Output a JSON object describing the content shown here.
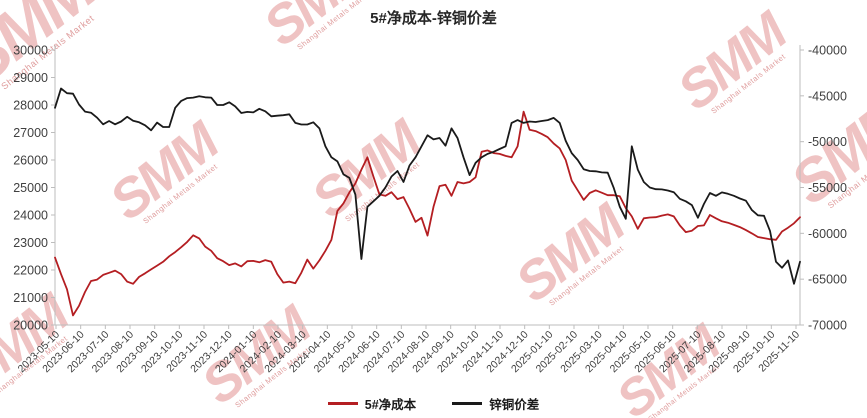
{
  "chart": {
    "title": "5#净成本-锌铜价差",
    "watermark": {
      "big": "SMM",
      "small": "Shanghai Metals Market"
    }
  },
  "chart_data": {
    "type": "line",
    "title": "5#净成本-锌铜价差",
    "grid": false,
    "legend_position": "bottom",
    "colors": {
      "net_cost": "#b41e22",
      "zinc_copper_spread": "#1a1a1a",
      "axis_line": "#bdbdbd",
      "axis_text": "#404040",
      "watermark_pink": "#e8b4b4"
    },
    "x_axis": {
      "label_rotation": -45,
      "tick_labels": [
        "2023-05-10",
        "2023-06-10",
        "2023-07-10",
        "2023-08-10",
        "2023-09-10",
        "2023-10-10",
        "2023-11-10",
        "2023-12-10",
        "2024-01-10",
        "2024-02-10",
        "2024-03-10",
        "2024-04-10",
        "2024-05-10",
        "2024-06-10",
        "2024-07-10",
        "2024-08-10",
        "2024-09-10",
        "2024-10-10",
        "2024-11-10",
        "2024-12-10",
        "2025-01-10",
        "2025-02-10",
        "2025-03-10",
        "2025-04-10",
        "2025-05-10",
        "2025-06-10",
        "2025-07-10",
        "2025-08-10",
        "2025-09-10",
        "2025-10-10",
        "2025-11-10"
      ]
    },
    "y_left": {
      "min": 20000,
      "max": 30000,
      "step": 1000,
      "tick_labels": [
        "30000",
        "29000",
        "28000",
        "27000",
        "26000",
        "25000",
        "24000",
        "23000",
        "22000",
        "21000",
        "20000"
      ]
    },
    "y_right": {
      "min": -70000,
      "max": -40000,
      "step": 5000,
      "tick_labels": [
        "-40000",
        "-45000",
        "-50000",
        "-55000",
        "-60000",
        "-65000",
        "-70000"
      ]
    },
    "series": [
      {
        "name": "5#净成本",
        "axis": "left",
        "color": "#b41e22",
        "values": [
          22450,
          21850,
          21300,
          20350,
          20700,
          21200,
          21600,
          21650,
          21820,
          21900,
          21980,
          21850,
          21580,
          21500,
          21750,
          21880,
          22020,
          22160,
          22300,
          22500,
          22650,
          22830,
          23020,
          23260,
          23150,
          22850,
          22700,
          22430,
          22320,
          22180,
          22240,
          22130,
          22320,
          22330,
          22280,
          22360,
          22300,
          21850,
          21540,
          21580,
          21520,
          21900,
          22380,
          22050,
          22350,
          22700,
          23100,
          24150,
          24420,
          24820,
          25150,
          25650,
          26100,
          25400,
          24750,
          24700,
          24830,
          24580,
          24650,
          24220,
          23750,
          23900,
          23250,
          24300,
          25050,
          25100,
          24700,
          25200,
          25150,
          25200,
          25370,
          26300,
          26350,
          26250,
          26220,
          26150,
          26100,
          26500,
          27760,
          27100,
          27050,
          26950,
          26830,
          26600,
          26420,
          26000,
          25250,
          24900,
          24550,
          24800,
          24900,
          24810,
          24720,
          24720,
          24680,
          24250,
          23950,
          23500,
          23880,
          23910,
          23920,
          23980,
          24020,
          23950,
          23620,
          23380,
          23430,
          23600,
          23620,
          24000,
          23880,
          23770,
          23720,
          23640,
          23560,
          23450,
          23330,
          23200,
          23160,
          23120,
          23100,
          23400,
          23540,
          23700,
          23920
        ]
      },
      {
        "name": "锌铜价差",
        "axis": "right",
        "color": "#1a1a1a",
        "values": [
          -46300,
          -44200,
          -44710,
          -44770,
          -45940,
          -46720,
          -46840,
          -47380,
          -48100,
          -47740,
          -48100,
          -47800,
          -47290,
          -47710,
          -47890,
          -48220,
          -48760,
          -47920,
          -48400,
          -48400,
          -46300,
          -45550,
          -45250,
          -45190,
          -45040,
          -45160,
          -45190,
          -46000,
          -46000,
          -45700,
          -46150,
          -46870,
          -46750,
          -46810,
          -46420,
          -46690,
          -47230,
          -47170,
          -47110,
          -47020,
          -47950,
          -48130,
          -48130,
          -47890,
          -48550,
          -50500,
          -51700,
          -52150,
          -53560,
          -53950,
          -55780,
          -62800,
          -57100,
          -56500,
          -55900,
          -55000,
          -53800,
          -53200,
          -54400,
          -52600,
          -51700,
          -50500,
          -49300,
          -49750,
          -49600,
          -50440,
          -48550,
          -49600,
          -51700,
          -53650,
          -52300,
          -51700,
          -51340,
          -51100,
          -50800,
          -50500,
          -47950,
          -47650,
          -47950,
          -47800,
          -47860,
          -47740,
          -47650,
          -47410,
          -47950,
          -49900,
          -51250,
          -52000,
          -53020,
          -53200,
          -53230,
          -53350,
          -53380,
          -55060,
          -57100,
          -58420,
          -50500,
          -53050,
          -54400,
          -55000,
          -55180,
          -55210,
          -55330,
          -55510,
          -56230,
          -56500,
          -56920,
          -58300,
          -56800,
          -55600,
          -55900,
          -55540,
          -55690,
          -55900,
          -56200,
          -56440,
          -57460,
          -58030,
          -58090,
          -59740,
          -63100,
          -63760,
          -62950,
          -65500,
          -63100
        ]
      }
    ]
  }
}
